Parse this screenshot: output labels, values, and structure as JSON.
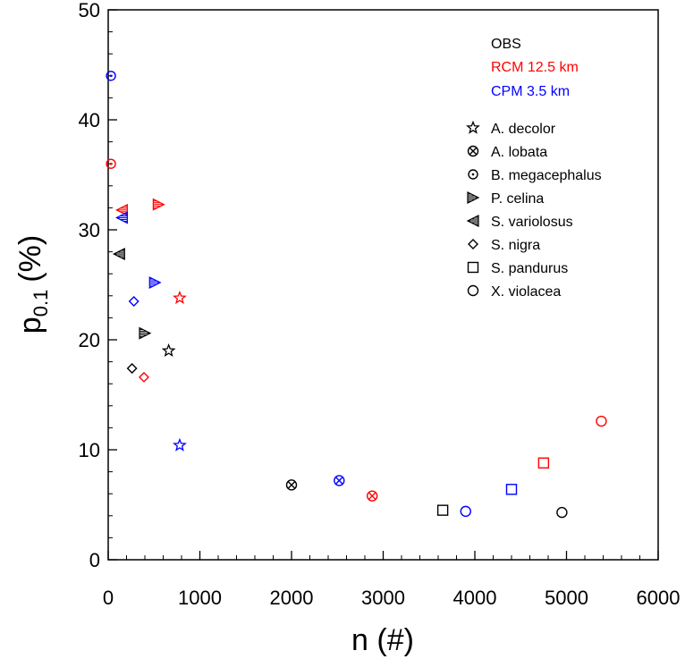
{
  "chart_data": {
    "type": "scatter",
    "xlabel": "n (#)",
    "ylabel_main": "p",
    "ylabel_sub": "0.1",
    "ylabel_unit": "(%)",
    "xlim": [
      0,
      6000
    ],
    "ylim": [
      0,
      50
    ],
    "xticks": [
      0,
      1000,
      2000,
      3000,
      4000,
      5000,
      6000
    ],
    "yticks": [
      0,
      10,
      20,
      30,
      40,
      50
    ],
    "xtick_labels": [
      "0",
      "1000",
      "2000",
      "3000",
      "4000",
      "5000",
      "6000"
    ],
    "ytick_labels": [
      "0",
      "10",
      "20",
      "30",
      "40",
      "50"
    ],
    "sources": [
      {
        "name": "OBS",
        "label": "OBS",
        "color": "#000000"
      },
      {
        "name": "RCM",
        "label": "RCM 12.5 km",
        "color": "#ff0000"
      },
      {
        "name": "CPM",
        "label": "CPM  3.5 km",
        "color": "#0000ff"
      }
    ],
    "species": [
      {
        "name": "A. decolor",
        "marker": "star"
      },
      {
        "name": "A. lobata",
        "marker": "circle-x"
      },
      {
        "name": "B. megacephalus",
        "marker": "circle-dot"
      },
      {
        "name": "P. celina",
        "marker": "tri-right"
      },
      {
        "name": "S. variolosus",
        "marker": "tri-left"
      },
      {
        "name": "S. nigra",
        "marker": "diamond"
      },
      {
        "name": "S. pandurus",
        "marker": "square"
      },
      {
        "name": "X. violacea",
        "marker": "circle"
      }
    ],
    "points": [
      {
        "species": "A. decolor",
        "source": "OBS",
        "x": 660,
        "y": 19.0
      },
      {
        "species": "A. decolor",
        "source": "RCM",
        "x": 780,
        "y": 23.8
      },
      {
        "species": "A. decolor",
        "source": "CPM",
        "x": 780,
        "y": 10.4
      },
      {
        "species": "A. lobata",
        "source": "OBS",
        "x": 2000,
        "y": 6.8
      },
      {
        "species": "A. lobata",
        "source": "RCM",
        "x": 2880,
        "y": 5.8
      },
      {
        "species": "A. lobata",
        "source": "CPM",
        "x": 2520,
        "y": 7.2
      },
      {
        "species": "B. megacephalus",
        "source": "RCM",
        "x": 30,
        "y": 36.0
      },
      {
        "species": "B. megacephalus",
        "source": "CPM",
        "x": 30,
        "y": 44.0
      },
      {
        "species": "P. celina",
        "source": "OBS",
        "x": 400,
        "y": 20.6
      },
      {
        "species": "P. celina",
        "source": "RCM",
        "x": 550,
        "y": 32.3
      },
      {
        "species": "P. celina",
        "source": "CPM",
        "x": 510,
        "y": 25.2
      },
      {
        "species": "S. variolosus",
        "source": "OBS",
        "x": 120,
        "y": 27.8
      },
      {
        "species": "S. variolosus",
        "source": "RCM",
        "x": 150,
        "y": 31.8
      },
      {
        "species": "S. variolosus",
        "source": "CPM",
        "x": 150,
        "y": 31.1
      },
      {
        "species": "S. nigra",
        "source": "OBS",
        "x": 260,
        "y": 17.4
      },
      {
        "species": "S. nigra",
        "source": "RCM",
        "x": 390,
        "y": 16.6
      },
      {
        "species": "S. nigra",
        "source": "CPM",
        "x": 280,
        "y": 23.5
      },
      {
        "species": "S. pandurus",
        "source": "OBS",
        "x": 3650,
        "y": 4.5
      },
      {
        "species": "S. pandurus",
        "source": "RCM",
        "x": 4750,
        "y": 8.8
      },
      {
        "species": "S. pandurus",
        "source": "CPM",
        "x": 4400,
        "y": 6.4
      },
      {
        "species": "X. violacea",
        "source": "OBS",
        "x": 4950,
        "y": 4.3
      },
      {
        "species": "X. violacea",
        "source": "RCM",
        "x": 5380,
        "y": 12.6
      },
      {
        "species": "X. violacea",
        "source": "CPM",
        "x": 3900,
        "y": 4.4
      }
    ]
  }
}
